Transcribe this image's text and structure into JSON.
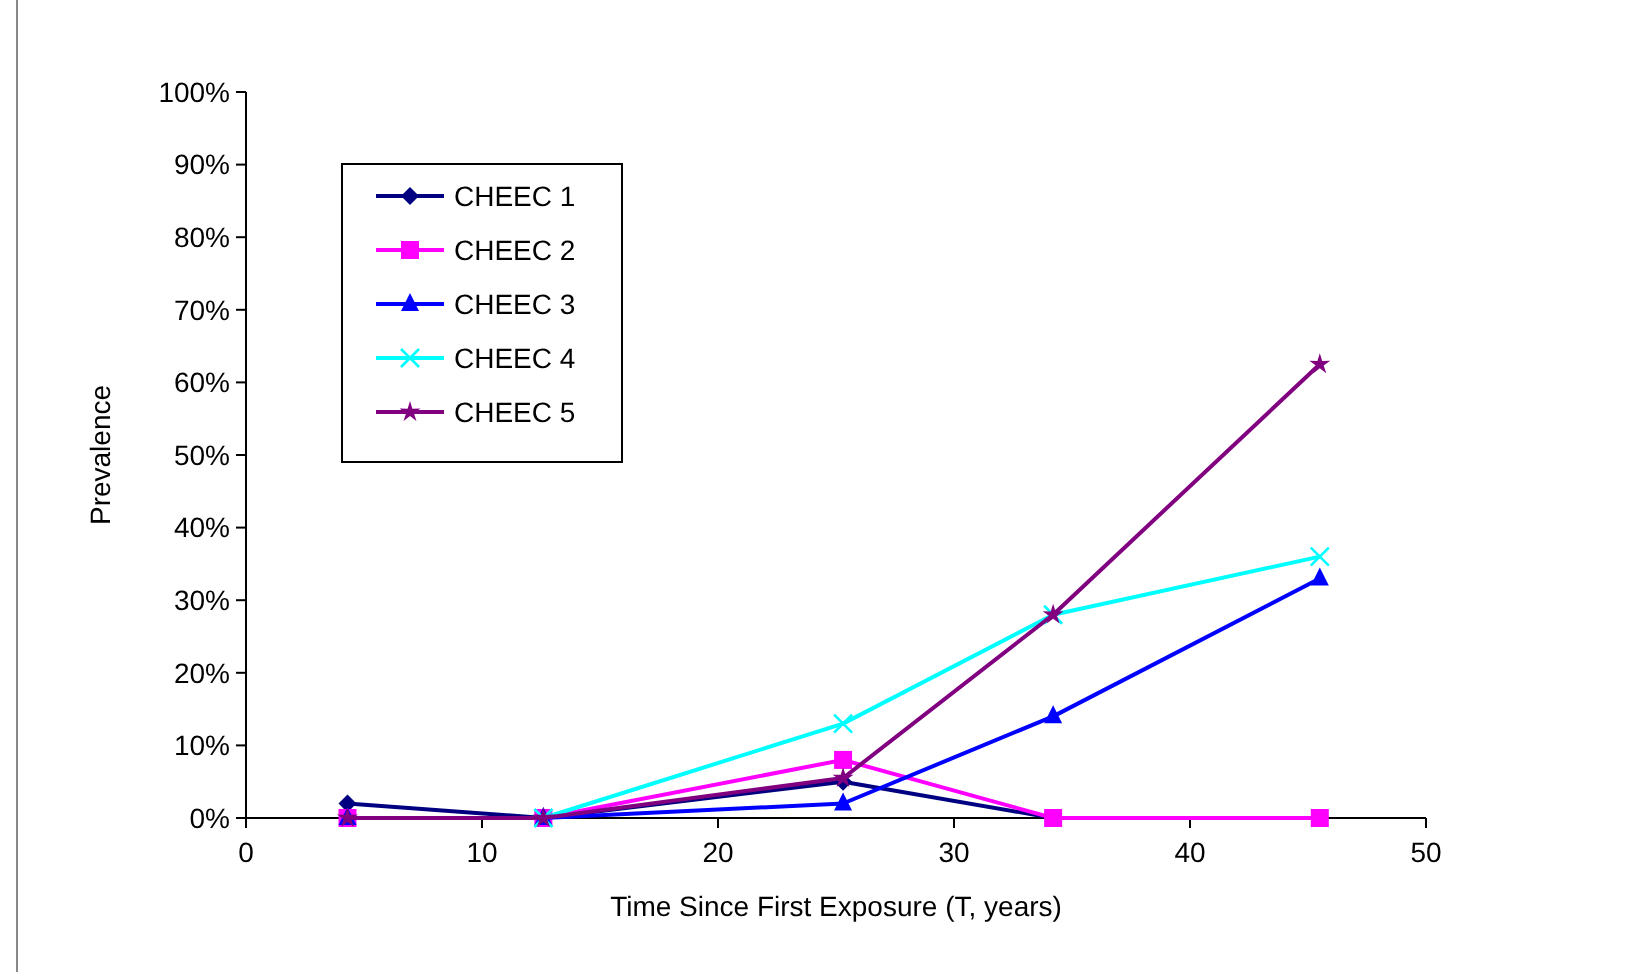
{
  "chart_data": {
    "type": "line",
    "xlabel": "Time Since First Exposure (T, years)",
    "ylabel": "Prevalence",
    "x": [
      4.3,
      12.6,
      25.3,
      34.2,
      45.5
    ],
    "series": [
      {
        "name": "CHEEC 1",
        "color": "#000080",
        "marker": "diamond",
        "values": [
          2,
          0,
          5,
          0,
          null
        ]
      },
      {
        "name": "CHEEC 2",
        "color": "#ff00ff",
        "marker": "square",
        "values": [
          0,
          0,
          8,
          0,
          0
        ]
      },
      {
        "name": "CHEEC 3",
        "color": "#0000ff",
        "marker": "triangle",
        "values": [
          0,
          0,
          2,
          14,
          33
        ]
      },
      {
        "name": "CHEEC 4",
        "color": "#00ffff",
        "marker": "cross",
        "values": [
          null,
          0,
          13,
          28,
          36
        ]
      },
      {
        "name": "CHEEC 5",
        "color": "#800080",
        "marker": "star",
        "values": [
          0,
          0,
          5.5,
          28,
          62.5
        ]
      }
    ],
    "xlim": [
      0,
      50
    ],
    "xticks": [
      0,
      10,
      20,
      30,
      40,
      50
    ],
    "ylim": [
      0,
      100
    ],
    "yticks": [
      {
        "value": 0,
        "label": "0%"
      },
      {
        "value": 10,
        "label": "10%"
      },
      {
        "value": 20,
        "label": "20%"
      },
      {
        "value": 30,
        "label": "30%"
      },
      {
        "value": 40,
        "label": "40%"
      },
      {
        "value": 50,
        "label": "50%"
      },
      {
        "value": 60,
        "label": "60%"
      },
      {
        "value": 70,
        "label": "70%"
      },
      {
        "value": 80,
        "label": "80%"
      },
      {
        "value": 90,
        "label": "90%"
      },
      {
        "value": 100,
        "label": "100%"
      }
    ],
    "grid": false,
    "legend": "top left",
    "line_style": "solid"
  }
}
